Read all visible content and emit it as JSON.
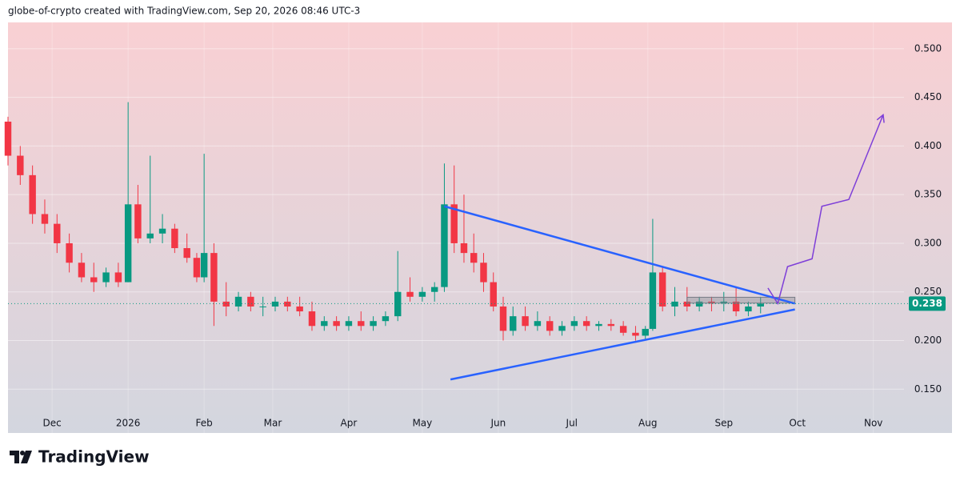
{
  "header": {
    "text": "globe-of-crypto created with TradingView.com, Sep 20, 2026 08:46 UTC-3"
  },
  "footer": {
    "logo": "TradingView"
  },
  "chart_data": {
    "type": "candlestick",
    "up_color": "#089981",
    "down_color": "#f23645",
    "grid": true,
    "xlim": [
      -18,
      347.5
    ],
    "ylim": [
      0.105,
      0.527
    ],
    "xticks": [
      {
        "value": 0,
        "label": "Dec"
      },
      {
        "value": 31,
        "label": "2026"
      },
      {
        "value": 62,
        "label": "Feb"
      },
      {
        "value": 90,
        "label": "Mar"
      },
      {
        "value": 121,
        "label": "Apr"
      },
      {
        "value": 151,
        "label": "May"
      },
      {
        "value": 182,
        "label": "Jun"
      },
      {
        "value": 212,
        "label": "Jul"
      },
      {
        "value": 243,
        "label": "Aug"
      },
      {
        "value": 274,
        "label": "Sep"
      },
      {
        "value": 304,
        "label": "Oct"
      },
      {
        "value": 335,
        "label": "Nov"
      }
    ],
    "yticks": [
      {
        "value": 0.5,
        "label": "0.500"
      },
      {
        "value": 0.45,
        "label": "0.450"
      },
      {
        "value": 0.4,
        "label": "0.400"
      },
      {
        "value": 0.35,
        "label": "0.350"
      },
      {
        "value": 0.3,
        "label": "0.300"
      },
      {
        "value": 0.25,
        "label": "0.250"
      },
      {
        "value": 0.2,
        "label": "0.200"
      },
      {
        "value": 0.15,
        "label": "0.150"
      }
    ],
    "x": [
      -18,
      -13,
      -8,
      -3,
      2,
      7,
      12,
      17,
      22,
      27,
      31,
      35,
      40,
      45,
      50,
      55,
      59,
      62,
      66,
      71,
      76,
      81,
      86,
      91,
      96,
      101,
      106,
      111,
      116,
      121,
      126,
      131,
      136,
      141,
      146,
      151,
      156,
      160,
      164,
      168,
      172,
      176,
      180,
      184,
      188,
      193,
      198,
      203,
      208,
      213,
      218,
      223,
      228,
      233,
      238,
      242,
      245,
      249,
      254,
      259,
      264,
      269,
      274,
      279,
      284,
      289
    ],
    "open": [
      0.425,
      0.39,
      0.37,
      0.33,
      0.32,
      0.3,
      0.28,
      0.265,
      0.26,
      0.27,
      0.26,
      0.34,
      0.305,
      0.31,
      0.315,
      0.295,
      0.285,
      0.265,
      0.29,
      0.24,
      0.235,
      0.245,
      0.235,
      0.235,
      0.24,
      0.235,
      0.23,
      0.215,
      0.22,
      0.215,
      0.22,
      0.215,
      0.22,
      0.225,
      0.25,
      0.245,
      0.25,
      0.255,
      0.34,
      0.3,
      0.29,
      0.28,
      0.26,
      0.235,
      0.21,
      0.225,
      0.215,
      0.22,
      0.21,
      0.215,
      0.22,
      0.215,
      0.217,
      0.215,
      0.208,
      0.205,
      0.212,
      0.27,
      0.235,
      0.24,
      0.235,
      0.24,
      0.238,
      0.24,
      0.23,
      0.235
    ],
    "high": [
      0.43,
      0.4,
      0.38,
      0.345,
      0.33,
      0.31,
      0.29,
      0.28,
      0.275,
      0.28,
      0.445,
      0.36,
      0.39,
      0.33,
      0.32,
      0.31,
      0.29,
      0.392,
      0.3,
      0.26,
      0.25,
      0.25,
      0.245,
      0.245,
      0.245,
      0.245,
      0.24,
      0.225,
      0.225,
      0.225,
      0.23,
      0.225,
      0.23,
      0.292,
      0.265,
      0.255,
      0.26,
      0.382,
      0.38,
      0.35,
      0.31,
      0.29,
      0.27,
      0.245,
      0.235,
      0.235,
      0.23,
      0.225,
      0.22,
      0.225,
      0.225,
      0.22,
      0.222,
      0.22,
      0.215,
      0.215,
      0.325,
      0.275,
      0.255,
      0.255,
      0.245,
      0.245,
      0.25,
      0.255,
      0.24,
      0.245
    ],
    "low": [
      0.38,
      0.36,
      0.32,
      0.31,
      0.29,
      0.27,
      0.26,
      0.25,
      0.255,
      0.255,
      0.26,
      0.3,
      0.3,
      0.3,
      0.29,
      0.28,
      0.26,
      0.26,
      0.215,
      0.225,
      0.23,
      0.23,
      0.225,
      0.23,
      0.23,
      0.225,
      0.21,
      0.21,
      0.21,
      0.21,
      0.21,
      0.21,
      0.215,
      0.22,
      0.24,
      0.24,
      0.24,
      0.25,
      0.29,
      0.28,
      0.27,
      0.25,
      0.23,
      0.2,
      0.205,
      0.21,
      0.21,
      0.205,
      0.205,
      0.21,
      0.21,
      0.21,
      0.21,
      0.205,
      0.2,
      0.2,
      0.21,
      0.23,
      0.225,
      0.23,
      0.23,
      0.23,
      0.23,
      0.225,
      0.225,
      0.228
    ],
    "close": [
      0.39,
      0.37,
      0.33,
      0.32,
      0.3,
      0.28,
      0.265,
      0.26,
      0.27,
      0.26,
      0.34,
      0.305,
      0.31,
      0.315,
      0.295,
      0.285,
      0.265,
      0.29,
      0.24,
      0.235,
      0.245,
      0.235,
      0.235,
      0.24,
      0.235,
      0.23,
      0.215,
      0.22,
      0.215,
      0.22,
      0.215,
      0.22,
      0.225,
      0.25,
      0.245,
      0.25,
      0.255,
      0.34,
      0.3,
      0.29,
      0.28,
      0.26,
      0.235,
      0.21,
      0.225,
      0.215,
      0.22,
      0.21,
      0.215,
      0.22,
      0.215,
      0.217,
      0.215,
      0.208,
      0.205,
      0.212,
      0.27,
      0.235,
      0.24,
      0.235,
      0.24,
      0.238,
      0.24,
      0.23,
      0.235,
      0.238
    ],
    "current_price": 0.238,
    "trendlines": [
      {
        "x": [
          160,
          303
        ],
        "y": [
          0.338,
          0.238
        ],
        "color": "#2962ff"
      },
      {
        "x": [
          162.5,
          303
        ],
        "y": [
          0.16,
          0.232
        ],
        "color": "#2962ff"
      }
    ],
    "projection": {
      "x": [
        292,
        296,
        300,
        310,
        314,
        325,
        339
      ],
      "y": [
        0.254,
        0.238,
        0.276,
        0.284,
        0.338,
        0.345,
        0.432
      ],
      "color": "#7e3fd8"
    },
    "range_box": {
      "x": [
        259,
        303
      ],
      "y": [
        0.2385,
        0.2445
      ]
    }
  }
}
